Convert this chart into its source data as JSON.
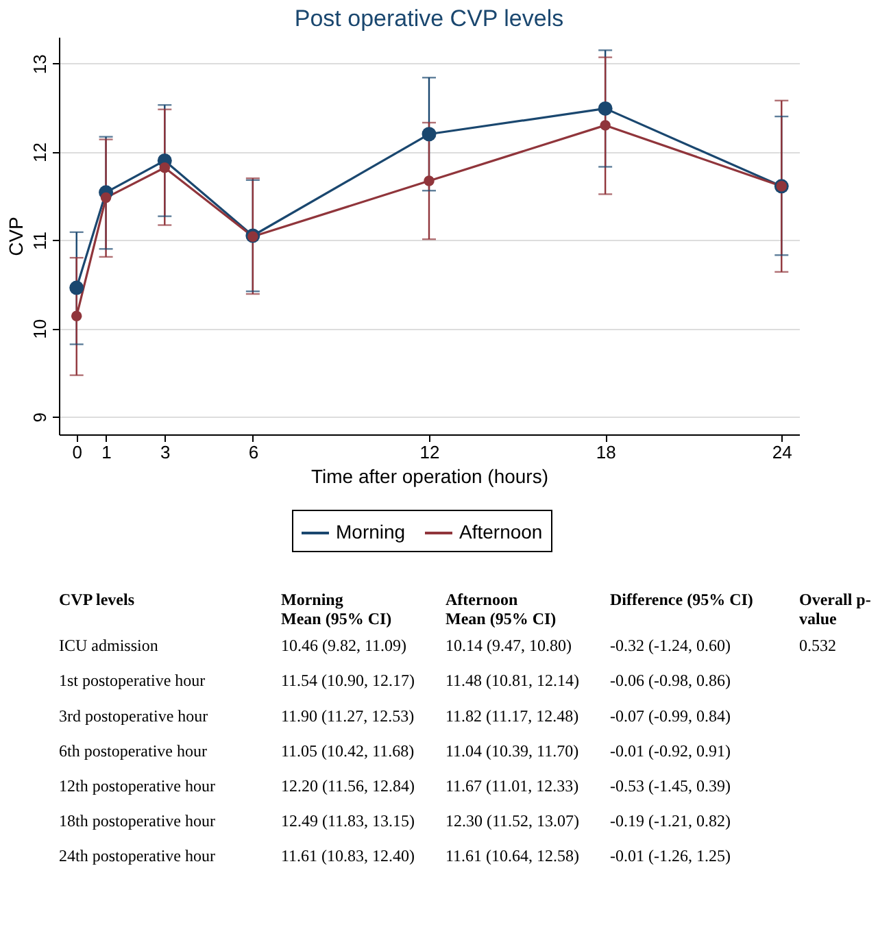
{
  "chart_data": {
    "type": "line",
    "title": "Post operative CVP levels",
    "xlabel": "Time after operation (hours)",
    "ylabel": "CVP",
    "x": [
      0,
      1,
      3,
      6,
      12,
      18,
      24
    ],
    "series": [
      {
        "name": "Morning",
        "color": "#1a476f",
        "values": [
          10.46,
          11.54,
          11.9,
          11.05,
          12.2,
          12.49,
          11.61
        ],
        "errors": [
          [
            9.82,
            11.09
          ],
          [
            10.9,
            12.17
          ],
          [
            11.27,
            12.53
          ],
          [
            10.42,
            11.68
          ],
          [
            11.56,
            12.84
          ],
          [
            11.83,
            13.15
          ],
          [
            10.83,
            12.4
          ]
        ]
      },
      {
        "name": "Afternoon",
        "color": "#90353b",
        "values": [
          10.14,
          11.48,
          11.82,
          11.04,
          11.67,
          12.3,
          11.61
        ],
        "errors": [
          [
            9.47,
            10.8
          ],
          [
            10.81,
            12.14
          ],
          [
            11.17,
            12.48
          ],
          [
            10.39,
            11.7
          ],
          [
            11.01,
            12.33
          ],
          [
            11.52,
            13.07
          ],
          [
            10.64,
            12.58
          ]
        ]
      }
    ],
    "xlim": [
      -0.6,
      24.6
    ],
    "xticks": [
      0,
      1,
      3,
      6,
      12,
      18,
      24
    ],
    "ylim": [
      8.8,
      13.3
    ],
    "yticks": [
      9,
      10,
      11,
      12,
      13
    ],
    "grid": "y",
    "legend": "bottom",
    "marker": "circle",
    "line_style": "solid",
    "annotations": [
      "CVP levels",
      "Morning\nMean (95% CI)",
      "Afternoon\nMean (95% CI)",
      "Difference (95% CI)",
      "Overall p-\nvalue",
      "ICU admission",
      "10.46 (9.82, 11.09)",
      "10.14 (9.47, 10.80)",
      "-0.32 (-1.24, 0.60)",
      "0.532",
      "1st postoperative hour",
      "11.54 (10.90, 12.17)",
      "11.48 (10.81, 12.14)",
      "-0.06 (-0.98, 0.86)",
      "3rd postoperative hour",
      "11.90 (11.27, 12.53)",
      "11.82 (11.17, 12.48)",
      "-0.07 (-0.99, 0.84)",
      "6th postoperative hour",
      "11.05 (10.42, 11.68)",
      "11.04 (10.39, 11.70)",
      "-0.01 (-0.92, 0.91)",
      "12th postoperative hour",
      "12.20 (11.56, 12.84)",
      "11.67 (11.01, 12.33)",
      "-0.53 (-1.45, 0.39)",
      "18th postoperative hour",
      "12.49 (11.83, 13.15)",
      "12.30 (11.52, 13.07)",
      "-0.19 (-1.21, 0.82)",
      "24th postoperative hour",
      "11.61 (10.83, 12.40)",
      "11.61 (10.64, 12.58)",
      "-0.01 (-1.26, 1.25)"
    ]
  }
}
